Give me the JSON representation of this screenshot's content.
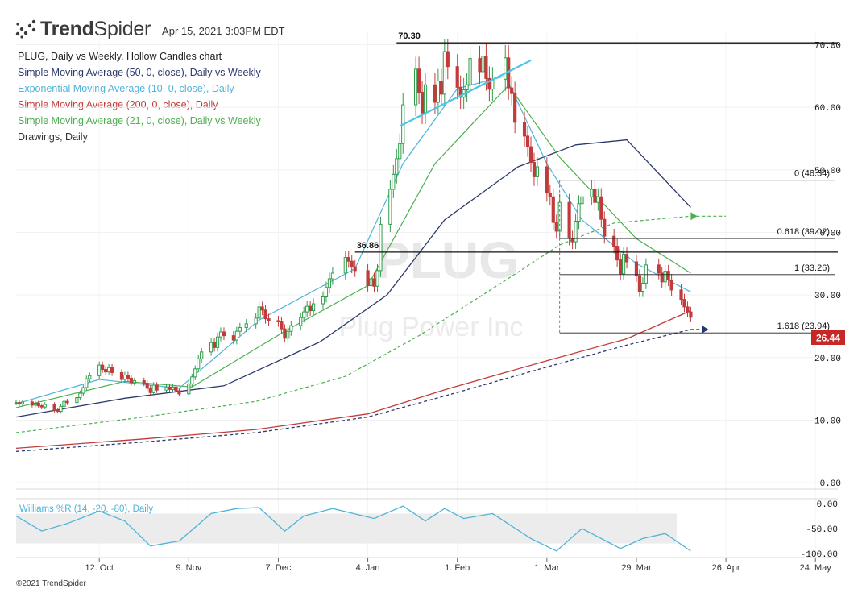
{
  "header": {
    "brand_bold": "Trend",
    "brand_light": "Spider",
    "timestamp": "Apr 15, 2021 3:03PM EDT",
    "logo_icon": "trendspider-dots-icon"
  },
  "legend": [
    {
      "label": "PLUG, Daily vs Weekly, Hollow Candles chart",
      "color": "#222222"
    },
    {
      "label": "Simple Moving Average (50, 0, close), Daily vs Weekly",
      "color": "#2b3a6b"
    },
    {
      "label": "Exponential Moving Average (10, 0, close), Daily",
      "color": "#4fb3d9"
    },
    {
      "label": "Simple Moving Average (200, 0, close), Daily",
      "color": "#c23b3b"
    },
    {
      "label": "Simple Moving Average (21, 0, close), Daily vs Weekly",
      "color": "#4caf50"
    },
    {
      "label": "Drawings, Daily",
      "color": "#333333"
    }
  ],
  "watermark": {
    "symbol": "PLUG",
    "name": "Plug Power Inc"
  },
  "copyright": "©2021 TrendSpider",
  "oscillator_label": "Williams %R (14, -20, -80), Daily",
  "last_price": "26.44",
  "chart_data": {
    "type": "candlestick",
    "symbol": "PLUG",
    "y_axis": {
      "ticks": [
        0,
        10,
        20,
        30,
        40,
        50,
        60,
        70
      ],
      "tick_labels": [
        "0.00",
        "10.00",
        "20.00",
        "30.00",
        "40.00",
        "50.00",
        "60.00",
        "70.00"
      ],
      "range": [
        -0.5,
        72
      ]
    },
    "x_axis": {
      "tick_labels": [
        "12. Oct",
        "9. Nov",
        "7. Dec",
        "4. Jan",
        "1. Feb",
        "1. Mar",
        "29. Mar",
        "26. Apr",
        "24. May"
      ],
      "tick_dates": [
        "2020-10-12",
        "2020-11-09",
        "2020-12-07",
        "2021-01-04",
        "2021-02-01",
        "2021-03-01",
        "2021-03-29",
        "2021-04-26",
        "2021-05-24"
      ],
      "range": [
        "2020-09-16",
        "2021-05-31"
      ]
    },
    "price_levels": [
      {
        "label": "70.30",
        "value": 70.3,
        "start": "2021-01-13"
      },
      {
        "label": "36.86",
        "value": 36.86,
        "start": "2020-12-31"
      }
    ],
    "fibonacci": [
      {
        "label": "0 (48.34)",
        "value": 48.34
      },
      {
        "label": "0.618 (39.02)",
        "value": 39.02
      },
      {
        "label": "1 (33.26)",
        "value": 33.26
      },
      {
        "label": "1.618 (23.94)",
        "value": 23.94
      }
    ],
    "fib_start": "2021-03-05",
    "trendline": {
      "start": [
        "2021-01-14",
        57
      ],
      "end": [
        "2021-02-24",
        67.5
      ]
    },
    "close_candles": [
      [
        "2020-09-16",
        12.8
      ],
      [
        "2020-09-17",
        12.6
      ],
      [
        "2020-09-18",
        12.9
      ],
      [
        "2020-09-21",
        12.4
      ],
      [
        "2020-09-22",
        12.7
      ],
      [
        "2020-09-23",
        12.3
      ],
      [
        "2020-09-24",
        12.1
      ],
      [
        "2020-09-25",
        12.5
      ],
      [
        "2020-09-28",
        11.6
      ],
      [
        "2020-09-29",
        11.4
      ],
      [
        "2020-09-30",
        12.2
      ],
      [
        "2020-10-01",
        13.0
      ],
      [
        "2020-10-02",
        12.8
      ],
      [
        "2020-10-05",
        13.6
      ],
      [
        "2020-10-06",
        14.3
      ],
      [
        "2020-10-07",
        15.2
      ],
      [
        "2020-10-08",
        16.6
      ],
      [
        "2020-10-09",
        17.1
      ],
      [
        "2020-10-12",
        18.8
      ],
      [
        "2020-10-13",
        18.1
      ],
      [
        "2020-10-14",
        17.7
      ],
      [
        "2020-10-15",
        18.4
      ],
      [
        "2020-10-16",
        17.6
      ],
      [
        "2020-10-19",
        16.5
      ],
      [
        "2020-10-20",
        17.2
      ],
      [
        "2020-10-21",
        16.7
      ],
      [
        "2020-10-22",
        16.0
      ],
      [
        "2020-10-23",
        16.3
      ],
      [
        "2020-10-26",
        15.9
      ],
      [
        "2020-10-27",
        15.1
      ],
      [
        "2020-10-28",
        14.4
      ],
      [
        "2020-10-29",
        15.6
      ],
      [
        "2020-10-30",
        14.8
      ],
      [
        "2020-11-02",
        15.3
      ],
      [
        "2020-11-03",
        14.9
      ],
      [
        "2020-11-04",
        15.3
      ],
      [
        "2020-11-05",
        14.7
      ],
      [
        "2020-11-06",
        14.2
      ],
      [
        "2020-11-09",
        15.8
      ],
      [
        "2020-11-10",
        16.9
      ],
      [
        "2020-11-11",
        18.2
      ],
      [
        "2020-11-12",
        19.8
      ],
      [
        "2020-11-13",
        20.9
      ],
      [
        "2020-11-16",
        22.4
      ],
      [
        "2020-11-17",
        21.6
      ],
      [
        "2020-11-18",
        23.3
      ],
      [
        "2020-11-19",
        24.1
      ],
      [
        "2020-11-20",
        23.5
      ],
      [
        "2020-11-23",
        22.8
      ],
      [
        "2020-11-24",
        24.2
      ],
      [
        "2020-11-25",
        24.8
      ],
      [
        "2020-11-27",
        25.4
      ],
      [
        "2020-11-30",
        26.3
      ],
      [
        "2020-12-01",
        28.1
      ],
      [
        "2020-12-02",
        27.6
      ],
      [
        "2020-12-03",
        26.2
      ],
      [
        "2020-12-04",
        25.9
      ],
      [
        "2020-12-07",
        25.7
      ],
      [
        "2020-12-08",
        24.6
      ],
      [
        "2020-12-09",
        23.1
      ],
      [
        "2020-12-10",
        24.2
      ],
      [
        "2020-12-11",
        25.1
      ],
      [
        "2020-12-14",
        26.4
      ],
      [
        "2020-12-15",
        27.3
      ],
      [
        "2020-12-16",
        28.2
      ],
      [
        "2020-12-17",
        27.5
      ],
      [
        "2020-12-18",
        28.6
      ],
      [
        "2020-12-21",
        29.7
      ],
      [
        "2020-12-22",
        31.2
      ],
      [
        "2020-12-23",
        32.6
      ],
      [
        "2020-12-24",
        33.5
      ],
      [
        "2020-12-28",
        36.0
      ],
      [
        "2020-12-29",
        35.4
      ],
      [
        "2020-12-30",
        34.5
      ],
      [
        "2020-12-31",
        33.9
      ],
      [
        "2021-01-04",
        31.5
      ],
      [
        "2021-01-05",
        32.6
      ],
      [
        "2021-01-06",
        31.4
      ],
      [
        "2021-01-07",
        33.9
      ],
      [
        "2021-01-08",
        41.3
      ],
      [
        "2021-01-11",
        46.9
      ],
      [
        "2021-01-12",
        49.3
      ],
      [
        "2021-01-13",
        51.8
      ],
      [
        "2021-01-14",
        54.2
      ],
      [
        "2021-01-15",
        60.4
      ],
      [
        "2021-01-19",
        66.1
      ],
      [
        "2021-01-20",
        62.4
      ],
      [
        "2021-01-21",
        59.1
      ],
      [
        "2021-01-22",
        63.6
      ],
      [
        "2021-01-25",
        60.8
      ],
      [
        "2021-01-26",
        64.2
      ],
      [
        "2021-01-27",
        62.1
      ],
      [
        "2021-01-28",
        68.9
      ],
      [
        "2021-01-29",
        66.5
      ],
      [
        "2021-02-01",
        63.2
      ],
      [
        "2021-02-02",
        61.6
      ],
      [
        "2021-02-03",
        62.8
      ],
      [
        "2021-02-04",
        63.6
      ],
      [
        "2021-02-05",
        67.8
      ],
      [
        "2021-02-08",
        65.7
      ],
      [
        "2021-02-09",
        68.2
      ],
      [
        "2021-02-10",
        64.6
      ],
      [
        "2021-02-11",
        62.9
      ],
      [
        "2021-02-12",
        64.5
      ],
      [
        "2021-02-16",
        67.9
      ],
      [
        "2021-02-17",
        63.1
      ],
      [
        "2021-02-18",
        62.2
      ],
      [
        "2021-02-19",
        57.6
      ],
      [
        "2021-02-22",
        55.4
      ],
      [
        "2021-02-23",
        53.7
      ],
      [
        "2021-02-24",
        51.2
      ],
      [
        "2021-02-25",
        48.9
      ],
      [
        "2021-02-26",
        50.5
      ],
      [
        "2021-03-01",
        46.3
      ],
      [
        "2021-03-02",
        45.7
      ],
      [
        "2021-03-03",
        41.6
      ],
      [
        "2021-03-04",
        40.2
      ],
      [
        "2021-03-05",
        44.8
      ],
      [
        "2021-03-08",
        39.1
      ],
      [
        "2021-03-09",
        38.5
      ],
      [
        "2021-03-10",
        41.8
      ],
      [
        "2021-03-11",
        44.6
      ],
      [
        "2021-03-12",
        45.7
      ],
      [
        "2021-03-15",
        46.9
      ],
      [
        "2021-03-16",
        44.8
      ],
      [
        "2021-03-17",
        45.7
      ],
      [
        "2021-03-18",
        42.1
      ],
      [
        "2021-03-19",
        39.4
      ],
      [
        "2021-03-22",
        37.8
      ],
      [
        "2021-03-23",
        35.6
      ],
      [
        "2021-03-24",
        33.4
      ],
      [
        "2021-03-25",
        36.5
      ],
      [
        "2021-03-26",
        35.3
      ],
      [
        "2021-03-29",
        33.1
      ],
      [
        "2021-03-30",
        30.6
      ],
      [
        "2021-03-31",
        31.9
      ],
      [
        "2021-04-01",
        34.8
      ],
      [
        "2021-04-05",
        33.5
      ],
      [
        "2021-04-06",
        32.1
      ],
      [
        "2021-04-07",
        33.8
      ],
      [
        "2021-04-08",
        32.4
      ],
      [
        "2021-04-09",
        30.8
      ],
      [
        "2021-04-12",
        29.3
      ],
      [
        "2021-04-13",
        28.1
      ],
      [
        "2021-04-14",
        27.3
      ],
      [
        "2021-04-15",
        26.44
      ]
    ],
    "ema_10": [
      [
        "2020-09-16",
        12.6
      ],
      [
        "2020-10-12",
        16.5
      ],
      [
        "2020-11-06",
        15.1
      ],
      [
        "2020-12-01",
        26.0
      ],
      [
        "2020-12-31",
        34.2
      ],
      [
        "2021-01-15",
        51.0
      ],
      [
        "2021-02-01",
        63.0
      ],
      [
        "2021-02-16",
        65.0
      ],
      [
        "2021-03-01",
        51.0
      ],
      [
        "2021-03-12",
        42.0
      ],
      [
        "2021-03-29",
        35.0
      ],
      [
        "2021-04-15",
        30.5
      ]
    ],
    "sma_21": [
      [
        "2020-09-16",
        12.0
      ],
      [
        "2020-10-20",
        16.2
      ],
      [
        "2020-11-10",
        15.3
      ],
      [
        "2020-12-10",
        24.5
      ],
      [
        "2021-01-04",
        31.5
      ],
      [
        "2021-01-25",
        51.0
      ],
      [
        "2021-02-17",
        63.5
      ],
      [
        "2021-03-05",
        52.0
      ],
      [
        "2021-03-29",
        39.0
      ],
      [
        "2021-04-15",
        33.5
      ]
    ],
    "sma_50": [
      [
        "2020-09-16",
        10.5
      ],
      [
        "2020-10-20",
        13.5
      ],
      [
        "2020-11-20",
        15.5
      ],
      [
        "2020-12-20",
        22.5
      ],
      [
        "2021-01-10",
        30.0
      ],
      [
        "2021-01-28",
        42.0
      ],
      [
        "2021-02-20",
        50.5
      ],
      [
        "2021-03-10",
        54.0
      ],
      [
        "2021-03-26",
        54.8
      ],
      [
        "2021-04-15",
        44.0
      ]
    ],
    "sma_200": [
      [
        "2020-09-16",
        5.5
      ],
      [
        "2020-10-26",
        7.0
      ],
      [
        "2020-11-30",
        8.5
      ],
      [
        "2021-01-04",
        11.0
      ],
      [
        "2021-01-29",
        15.0
      ],
      [
        "2021-03-01",
        19.5
      ],
      [
        "2021-03-26",
        23.0
      ],
      [
        "2021-04-15",
        27.5
      ]
    ],
    "sma_50_weekly": [
      [
        "2020-09-16",
        8.0
      ],
      [
        "2020-10-26",
        10.5
      ],
      [
        "2020-11-30",
        13.0
      ],
      [
        "2020-12-28",
        17.0
      ],
      [
        "2021-01-20",
        23.5
      ],
      [
        "2021-02-15",
        32.0
      ],
      [
        "2021-03-05",
        38.0
      ],
      [
        "2021-03-22",
        41.5
      ],
      [
        "2021-04-15",
        42.6
      ],
      [
        "2021-04-26",
        42.6
      ]
    ],
    "sma_200_weekly": [
      [
        "2020-09-16",
        5.0
      ],
      [
        "2020-10-26",
        6.5
      ],
      [
        "2020-11-30",
        8.0
      ],
      [
        "2021-01-04",
        10.5
      ],
      [
        "2021-01-29",
        14.0
      ],
      [
        "2021-03-01",
        18.5
      ],
      [
        "2021-03-26",
        22.0
      ],
      [
        "2021-04-15",
        24.5
      ],
      [
        "2021-04-20",
        24.5
      ]
    ],
    "williams_r": {
      "label": "Williams %R (14, -20, -80), Daily",
      "ticks": [
        0,
        -50,
        -100
      ],
      "tick_labels": [
        "0.00",
        "-50.00",
        "-100.00"
      ],
      "band": [
        -20,
        -80
      ],
      "values": [
        [
          "2020-09-16",
          -25
        ],
        [
          "2020-09-24",
          -55
        ],
        [
          "2020-10-02",
          -40
        ],
        [
          "2020-10-12",
          -15
        ],
        [
          "2020-10-20",
          -35
        ],
        [
          "2020-10-28",
          -85
        ],
        [
          "2020-11-06",
          -75
        ],
        [
          "2020-11-16",
          -20
        ],
        [
          "2020-11-24",
          -10
        ],
        [
          "2020-12-01",
          -8
        ],
        [
          "2020-12-09",
          -55
        ],
        [
          "2020-12-15",
          -25
        ],
        [
          "2020-12-24",
          -10
        ],
        [
          "2021-01-06",
          -30
        ],
        [
          "2021-01-15",
          -5
        ],
        [
          "2021-01-22",
          -35
        ],
        [
          "2021-01-28",
          -10
        ],
        [
          "2021-02-03",
          -30
        ],
        [
          "2021-02-12",
          -20
        ],
        [
          "2021-02-24",
          -70
        ],
        [
          "2021-03-04",
          -95
        ],
        [
          "2021-03-12",
          -50
        ],
        [
          "2021-03-24",
          -90
        ],
        [
          "2021-03-31",
          -70
        ],
        [
          "2021-04-07",
          -60
        ],
        [
          "2021-04-15",
          -95
        ]
      ]
    }
  }
}
